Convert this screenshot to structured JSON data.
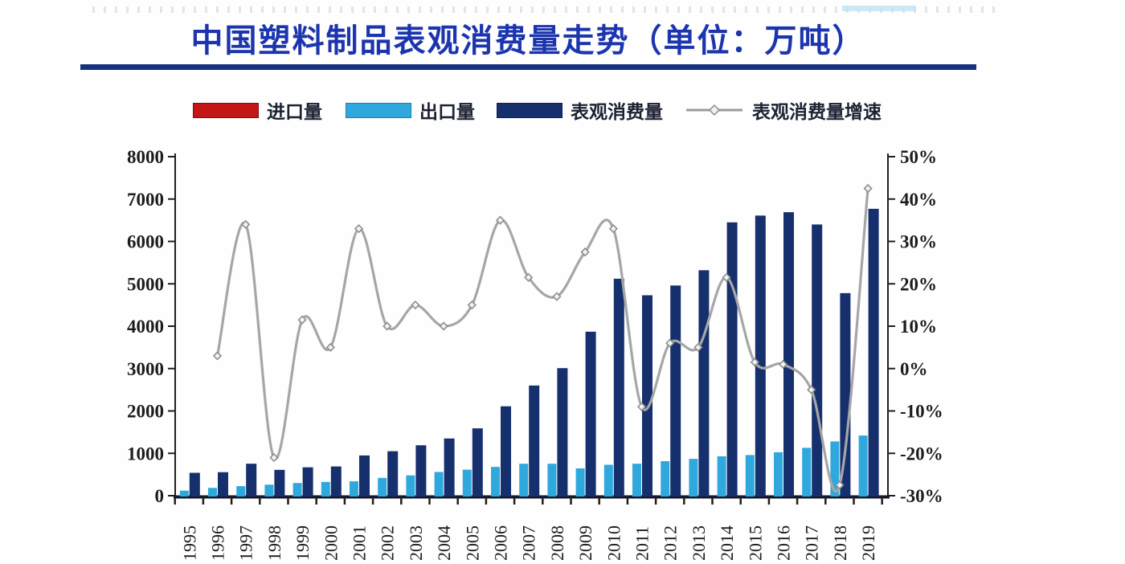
{
  "title": {
    "text": "中国塑料制品表观消费量走势（单位：万吨）"
  },
  "legend": {
    "items": [
      {
        "label": "进口量",
        "color": "#c41616",
        "type": "bar"
      },
      {
        "label": "出口量",
        "color": "#2fa9dd",
        "type": "bar"
      },
      {
        "label": "表观消费量",
        "color": "#16306e",
        "type": "bar"
      },
      {
        "label": "表观消费量增速",
        "color": "#a6a6a6",
        "type": "line",
        "marker": "open-diamond"
      }
    ]
  },
  "chart_data": {
    "type": "bar",
    "subtype": "grouped-bar-with-line-combo",
    "title": "中国塑料制品表观消费量走势（单位：万吨）",
    "categories": [
      "1995",
      "1996",
      "1997",
      "1998",
      "1999",
      "2000",
      "2001",
      "2002",
      "2003",
      "2004",
      "2005",
      "2006",
      "2007",
      "2008",
      "2009",
      "2010",
      "2011",
      "2012",
      "2013",
      "2014",
      "2015",
      "2016",
      "2017",
      "2018",
      "2019"
    ],
    "series": [
      {
        "name": "进口量",
        "type": "bar",
        "axis": "left",
        "color": "#c41616",
        "values_visible": false,
        "values": []
      },
      {
        "name": "出口量",
        "type": "bar",
        "axis": "left",
        "color": "#2fa9dd",
        "values": [
          120,
          185,
          225,
          260,
          300,
          325,
          340,
          420,
          480,
          560,
          615,
          680,
          755,
          755,
          645,
          730,
          755,
          815,
          870,
          930,
          960,
          1025,
          1130,
          1280,
          1420
        ]
      },
      {
        "name": "表观消费量",
        "type": "bar",
        "axis": "left",
        "color": "#16306e",
        "values": [
          540,
          555,
          755,
          610,
          670,
          690,
          950,
          1050,
          1190,
          1350,
          1590,
          2110,
          2600,
          3010,
          3870,
          5120,
          4730,
          4960,
          5320,
          6450,
          6610,
          6690,
          6400,
          4780,
          6770
        ]
      },
      {
        "name": "表观消费量增速",
        "type": "line",
        "axis": "right",
        "unit": "%",
        "color": "#a6a6a6",
        "marker": "open-diamond",
        "values": [
          null,
          3,
          34,
          -21,
          11.5,
          5,
          33,
          10,
          15,
          10,
          15,
          35,
          21.5,
          17,
          27.5,
          33,
          -9,
          6,
          5,
          21.5,
          1.5,
          1,
          -5,
          -27.5,
          42.5
        ]
      }
    ],
    "left_axis": {
      "min": 0,
      "max": 8000,
      "step": 1000,
      "tick_labels": [
        "8000",
        "7000",
        "6000",
        "5000",
        "4000",
        "3000",
        "2000",
        "1000",
        "0"
      ]
    },
    "right_axis": {
      "min": -30,
      "max": 50,
      "step": 10,
      "tick_labels": [
        "50%",
        "40%",
        "30%",
        "20%",
        "10%",
        "0%",
        "-10%",
        "-20%",
        "-30%"
      ]
    },
    "grid": false,
    "legend_position": "top",
    "x_tick_rotation": -90
  }
}
